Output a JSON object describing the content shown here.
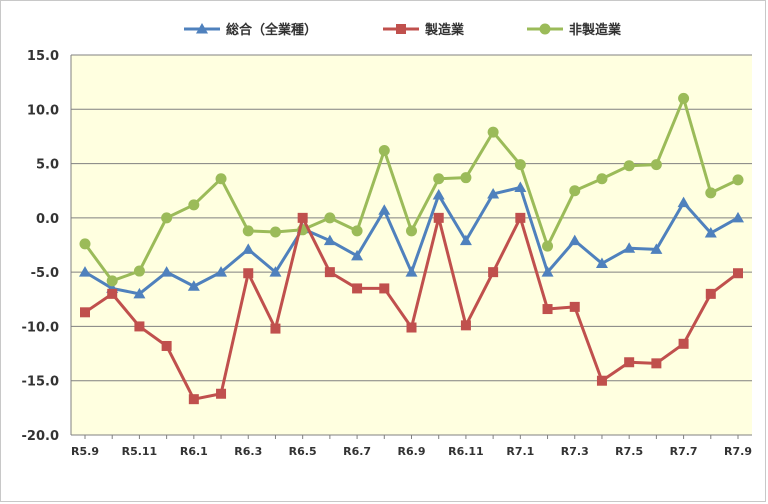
{
  "chart_data": {
    "type": "line",
    "title": "",
    "xlabel": "",
    "ylabel": "",
    "ylim": [
      -20,
      15
    ],
    "y_ticks": [
      "15.0",
      "10.0",
      "5.0",
      "0.0",
      "-5.0",
      "-10.0",
      "-15.0",
      "-20.0"
    ],
    "y_tick_values": [
      15,
      10,
      5,
      0,
      -5,
      -10,
      -15,
      -20
    ],
    "grid": true,
    "legend_position": "top",
    "plot_background": "#FFFFE0",
    "x": [
      "R5.9",
      "R5.10",
      "R5.11",
      "R5.12",
      "R6.1",
      "R6.2",
      "R6.3",
      "R6.4",
      "R6.5",
      "R6.6",
      "R6.7",
      "R6.8",
      "R6.9",
      "R6.10",
      "R6.11",
      "R6.12",
      "R7.1",
      "R7.2",
      "R7.3",
      "R7.4",
      "R7.5",
      "R7.6",
      "R7.7",
      "R7.8",
      "R7.9"
    ],
    "x_tick_labels": [
      {
        "index": 0,
        "label": "R5.9"
      },
      {
        "index": 2,
        "label": "R5.11"
      },
      {
        "index": 4,
        "label": "R6.1"
      },
      {
        "index": 6,
        "label": "R6.3"
      },
      {
        "index": 8,
        "label": "R6.5"
      },
      {
        "index": 10,
        "label": "R6.7"
      },
      {
        "index": 12,
        "label": "R6.9"
      },
      {
        "index": 14,
        "label": "R6.11"
      },
      {
        "index": 16,
        "label": "R7.1"
      },
      {
        "index": 18,
        "label": "R7.3"
      },
      {
        "index": 20,
        "label": "R7.5"
      },
      {
        "index": 22,
        "label": "R7.7"
      },
      {
        "index": 24,
        "label": "R7.9"
      }
    ],
    "series": [
      {
        "name": "総合（全業種）",
        "color": "#4F81BD",
        "marker": "triangle",
        "values": [
          -5.0,
          -6.5,
          -7.0,
          -5.0,
          -6.3,
          -5.0,
          -2.9,
          -5.0,
          -1.0,
          -2.1,
          -3.5,
          0.7,
          -5.0,
          2.1,
          -2.1,
          2.2,
          2.8,
          -5.0,
          -2.1,
          -4.2,
          -2.8,
          -2.9,
          1.4,
          -1.4,
          0.0
        ]
      },
      {
        "name": "製造業",
        "color": "#C0504D",
        "marker": "square",
        "values": [
          -8.7,
          -7.0,
          -10.0,
          -11.8,
          -16.7,
          -16.2,
          -5.1,
          -10.2,
          0.0,
          -5.0,
          -6.5,
          -6.5,
          -10.1,
          0.0,
          -9.9,
          -5.0,
          0.0,
          -8.4,
          -8.2,
          -15.0,
          -13.3,
          -13.4,
          -11.6,
          -7.0,
          -5.1
        ]
      },
      {
        "name": "非製造業",
        "color": "#9BBB59",
        "marker": "circle",
        "values": [
          -2.4,
          -5.8,
          -4.9,
          0.0,
          1.2,
          3.6,
          -1.2,
          -1.3,
          -1.1,
          0.0,
          -1.2,
          6.2,
          -1.2,
          3.6,
          3.7,
          7.9,
          4.9,
          -2.6,
          2.5,
          3.6,
          4.8,
          4.9,
          11.0,
          2.3,
          3.5
        ]
      }
    ]
  }
}
